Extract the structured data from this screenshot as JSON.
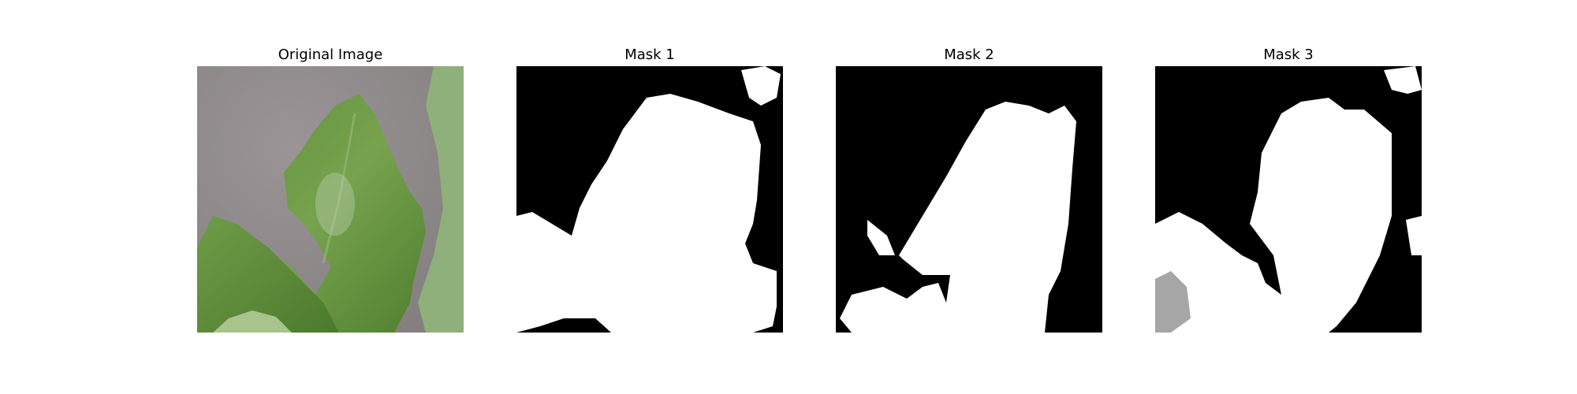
{
  "figure": {
    "panels": [
      {
        "title": "Original Image",
        "kind": "photo"
      },
      {
        "title": "Mask 1",
        "kind": "mask"
      },
      {
        "title": "Mask 2",
        "kind": "mask"
      },
      {
        "title": "Mask 3",
        "kind": "mask"
      }
    ]
  },
  "colors": {
    "background": "#ffffff",
    "mask_bg": "#000000",
    "mask_fg": "#ffffff",
    "surface_gray": "#8f8a8d",
    "leaf_dark": "#4a7a2c",
    "leaf_light": "#7fa65a"
  }
}
